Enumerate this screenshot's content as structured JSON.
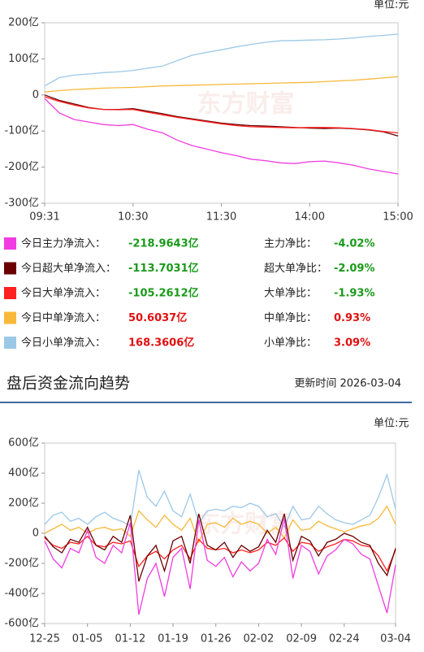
{
  "unit_label_top": "单位:元",
  "chart_data": [
    {
      "type": "line",
      "watermark": "东方财富",
      "xlim": [
        0,
        240
      ],
      "xticks": [
        {
          "value": 0,
          "label": "09:31"
        },
        {
          "value": 60,
          "label": "10:30"
        },
        {
          "value": 120,
          "label": "11:30"
        },
        {
          "value": 180,
          "label": "14:00"
        },
        {
          "value": 240,
          "label": "15:00"
        }
      ],
      "ylim": [
        -300,
        200
      ],
      "yticks": [
        {
          "value": 200,
          "label": "200亿"
        },
        {
          "value": 100,
          "label": "100亿"
        },
        0,
        {
          "value": -100,
          "label": "-100亿"
        },
        {
          "value": -200,
          "label": "-200亿"
        },
        {
          "value": -300,
          "label": "-300亿"
        }
      ],
      "x": [
        0,
        10,
        20,
        30,
        40,
        50,
        60,
        70,
        80,
        90,
        100,
        110,
        120,
        130,
        140,
        150,
        160,
        170,
        180,
        190,
        200,
        210,
        220,
        230,
        240
      ],
      "series": [
        {
          "name": "今日主力净流入：",
          "color": "#f03ce0",
          "values": [
            -10,
            -50,
            -68,
            -75,
            -82,
            -85,
            -82,
            -95,
            -105,
            -125,
            -140,
            -150,
            -160,
            -168,
            -178,
            -182,
            -188,
            -190,
            -185,
            -183,
            -188,
            -195,
            -205,
            -212,
            -218.9643
          ],
          "total": -218.9643,
          "total_label": "-218.9643亿",
          "ratio_name": "主力净比：",
          "ratio": -4.02,
          "ratio_label": "-4.02%"
        },
        {
          "name": "今日超大单净流入：",
          "color": "#6b0000",
          "values": [
            0,
            -15,
            -25,
            -35,
            -40,
            -40,
            -38,
            -45,
            -52,
            -60,
            -66,
            -72,
            -78,
            -82,
            -85,
            -86,
            -88,
            -90,
            -92,
            -93,
            -92,
            -94,
            -97,
            -102,
            -113.7031
          ],
          "total": -113.7031,
          "total_label": "-113.7031亿",
          "ratio_name": "超大单净比：",
          "ratio": -2.09,
          "ratio_label": "-2.09%"
        },
        {
          "name": "今日大单净流入：",
          "color": "#ff2020",
          "values": [
            -5,
            -18,
            -28,
            -36,
            -40,
            -41,
            -40,
            -48,
            -55,
            -62,
            -68,
            -74,
            -80,
            -85,
            -88,
            -89,
            -90,
            -91,
            -90,
            -90,
            -91,
            -93,
            -96,
            -101,
            -105.2612
          ],
          "total": -105.2612,
          "total_label": "-105.2612亿",
          "ratio_name": "大单净比：",
          "ratio": -1.93,
          "ratio_label": "-1.93%"
        },
        {
          "name": "今日中单净流入：",
          "color": "#f8b83a",
          "values": [
            8,
            12,
            15,
            17,
            19,
            20,
            21,
            23,
            25,
            26,
            27,
            28,
            29,
            30,
            31,
            32,
            33,
            34,
            35,
            37,
            39,
            41,
            44,
            47,
            50.6037
          ],
          "total": 50.6037,
          "total_label": "50.6037亿",
          "ratio_name": "中单净比：",
          "ratio": 0.93,
          "ratio_label": "0.93%"
        },
        {
          "name": "今日小单净流入：",
          "color": "#9cc8e8",
          "values": [
            25,
            48,
            55,
            58,
            62,
            64,
            68,
            74,
            80,
            95,
            110,
            118,
            125,
            133,
            140,
            146,
            150,
            151,
            152,
            153,
            155,
            158,
            162,
            165,
            168.3606
          ],
          "total": 168.3606,
          "total_label": "168.3606亿",
          "ratio_name": "小单净比：",
          "ratio": 3.09,
          "ratio_label": "3.09%"
        }
      ]
    },
    {
      "type": "line",
      "watermark": "东方财富",
      "categories": [
        "12-25",
        null,
        null,
        null,
        null,
        "01-05",
        null,
        null,
        null,
        null,
        "01-12",
        null,
        null,
        null,
        null,
        "01-19",
        null,
        null,
        null,
        null,
        "01-26",
        null,
        null,
        null,
        null,
        "02-02",
        null,
        null,
        null,
        null,
        "02-09",
        null,
        null,
        null,
        null,
        "02-24",
        null,
        null,
        null,
        null,
        null,
        "03-04"
      ],
      "ylim": [
        -600,
        600
      ],
      "yticks": [
        {
          "value": 600,
          "label": "600亿"
        },
        {
          "value": 400,
          "label": "400亿"
        },
        {
          "value": 200,
          "label": "200亿"
        },
        0,
        {
          "value": -200,
          "label": "-200亿"
        },
        {
          "value": -400,
          "label": "-400亿"
        },
        {
          "value": -600,
          "label": "-600亿"
        }
      ],
      "series": [
        {
          "color": "#9cc8e8",
          "values": [
            60,
            120,
            140,
            80,
            100,
            60,
            110,
            140,
            100,
            80,
            50,
            420,
            240,
            180,
            280,
            150,
            110,
            260,
            70,
            150,
            160,
            150,
            180,
            170,
            200,
            180,
            110,
            130,
            40,
            180,
            90,
            100,
            180,
            130,
            90,
            70,
            60,
            90,
            120,
            240,
            390,
            160
          ]
        },
        {
          "color": "#f8b83a",
          "values": [
            0,
            30,
            60,
            20,
            40,
            0,
            30,
            40,
            20,
            30,
            -20,
            150,
            90,
            40,
            120,
            60,
            20,
            100,
            -60,
            60,
            70,
            40,
            100,
            60,
            80,
            60,
            0,
            40,
            -30,
            90,
            20,
            30,
            80,
            50,
            30,
            10,
            30,
            50,
            60,
            100,
            180,
            60
          ]
        },
        {
          "color": "#ff2020",
          "values": [
            -30,
            -80,
            -100,
            -60,
            -70,
            -20,
            -80,
            -90,
            -60,
            -70,
            -50,
            -220,
            -150,
            -120,
            -170,
            -110,
            -80,
            -170,
            -40,
            -100,
            -110,
            -100,
            -130,
            -110,
            -130,
            -110,
            -60,
            -80,
            -30,
            -120,
            -60,
            -70,
            -120,
            -90,
            -70,
            -40,
            -50,
            -80,
            -90,
            -150,
            -250,
            -110
          ]
        },
        {
          "color": "#6b0000",
          "values": [
            -20,
            -90,
            -130,
            -40,
            -60,
            40,
            -80,
            -110,
            -20,
            -60,
            120,
            -320,
            -150,
            -80,
            -250,
            -50,
            -20,
            -200,
            130,
            -80,
            -110,
            -60,
            -160,
            -80,
            -120,
            -90,
            20,
            -60,
            130,
            -180,
            -20,
            -50,
            -150,
            -60,
            -40,
            0,
            -20,
            -60,
            -80,
            -200,
            -280,
            -100
          ]
        },
        {
          "color": "#f03ce0",
          "values": [
            -50,
            -170,
            -230,
            -100,
            -130,
            20,
            -160,
            -200,
            -80,
            -130,
            70,
            -540,
            -300,
            -200,
            -420,
            -160,
            -100,
            -370,
            90,
            -180,
            -220,
            -160,
            -290,
            -190,
            -250,
            -200,
            -40,
            -140,
            100,
            -300,
            -80,
            -120,
            -270,
            -150,
            -110,
            -40,
            -70,
            -140,
            -170,
            -350,
            -530,
            -210
          ]
        }
      ]
    }
  ],
  "section": {
    "title": "盘后资金流向趋势",
    "updated": "更新时间 2026-03-04",
    "unit_label": "单位:元"
  }
}
